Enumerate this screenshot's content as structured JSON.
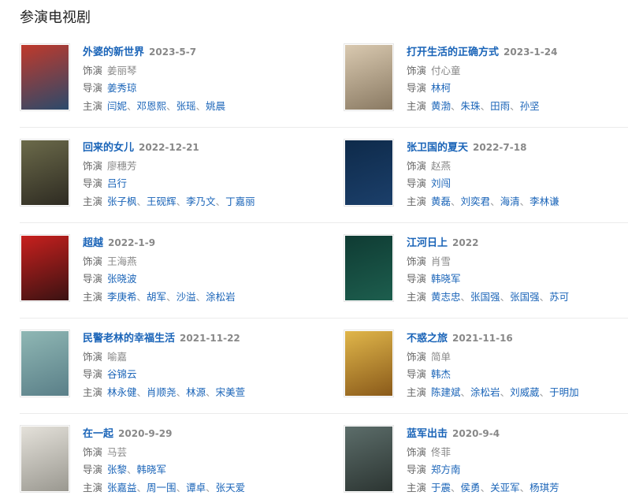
{
  "heading": "参演电视剧",
  "labels": {
    "role": "饰演",
    "director": "导演",
    "cast": "主演",
    "separator": "、"
  },
  "dramas": [
    {
      "title": "外婆的新世界",
      "date": "2023-5-7",
      "role": "姜丽琴",
      "directors": [
        "姜秀琼"
      ],
      "cast": [
        "闫妮",
        "邓恩熙",
        "张瑶",
        "姚晨"
      ],
      "poster_colors": [
        "#c0392b",
        "#2b4a6b"
      ]
    },
    {
      "title": "打开生活的正确方式",
      "date": "2023-1-24",
      "role": "付心童",
      "directors": [
        "林柯"
      ],
      "cast": [
        "黄渤",
        "朱珠",
        "田雨",
        "孙坚"
      ],
      "poster_colors": [
        "#d9c9b0",
        "#8a7a63"
      ]
    },
    {
      "title": "回来的女儿",
      "date": "2022-12-21",
      "role": "廖穗芳",
      "directors": [
        "吕行"
      ],
      "cast": [
        "张子枫",
        "王砚辉",
        "李乃文",
        "丁嘉丽"
      ],
      "poster_colors": [
        "#6b6a4a",
        "#2e2b22"
      ]
    },
    {
      "title": "张卫国的夏天",
      "date": "2022-7-18",
      "role": "赵燕",
      "directors": [
        "刘闯"
      ],
      "cast": [
        "黄磊",
        "刘奕君",
        "海清",
        "李林谦"
      ],
      "poster_colors": [
        "#0e2a4a",
        "#1b3f6a"
      ]
    },
    {
      "title": "超越",
      "date": "2022-1-9",
      "role": "王海燕",
      "directors": [
        "张晓波"
      ],
      "cast": [
        "李庚希",
        "胡军",
        "沙溢",
        "涂松岩"
      ],
      "poster_colors": [
        "#c8201e",
        "#3a1212"
      ]
    },
    {
      "title": "江河日上",
      "date": "2022",
      "role": "肖雪",
      "directors": [
        "韩晓军"
      ],
      "cast": [
        "黄志忠",
        "张国强",
        "张国强",
        "苏可"
      ],
      "poster_colors": [
        "#0f3b33",
        "#1d5e4e"
      ]
    },
    {
      "title": "民警老林的幸福生活",
      "date": "2021-11-22",
      "role": "喻嘉",
      "directors": [
        "谷锦云"
      ],
      "cast": [
        "林永健",
        "肖顺尧",
        "林源",
        "宋美萱"
      ],
      "poster_colors": [
        "#8fb7b4",
        "#5a7f88"
      ]
    },
    {
      "title": "不惑之旅",
      "date": "2021-11-16",
      "role": "简单",
      "directors": [
        "韩杰"
      ],
      "cast": [
        "陈建斌",
        "涂松岩",
        "刘威葳",
        "于明加"
      ],
      "poster_colors": [
        "#e0b64a",
        "#8a5a1a"
      ]
    },
    {
      "title": "在一起",
      "date": "2020-9-29",
      "role": "马芸",
      "directors": [
        "张黎",
        "韩晓军"
      ],
      "cast": [
        "张嘉益",
        "周一围",
        "谭卓",
        "张天爱"
      ],
      "poster_colors": [
        "#e4e1da",
        "#9a9890"
      ]
    },
    {
      "title": "蓝军出击",
      "date": "2020-9-4",
      "role": "佟菲",
      "directors": [
        "郑方南"
      ],
      "cast": [
        "于震",
        "侯勇",
        "关亚军",
        "杨琪芳"
      ],
      "poster_colors": [
        "#5c6d6a",
        "#2c3532"
      ]
    }
  ]
}
